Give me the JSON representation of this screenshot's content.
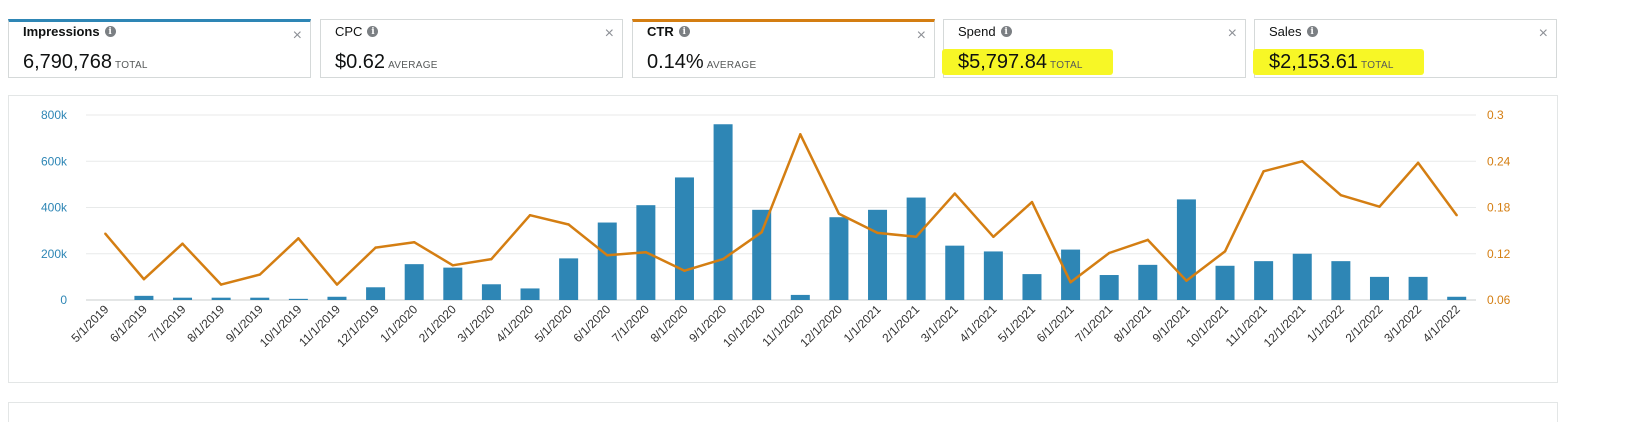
{
  "metrics": [
    {
      "label": "Impressions",
      "value": "6,790,768",
      "unit": "TOTAL",
      "selected": "blue"
    },
    {
      "label": "CPC",
      "value": "$0.62",
      "unit": "AVERAGE"
    },
    {
      "label": "CTR",
      "value": "0.14%",
      "unit": "AVERAGE",
      "selected": "orange"
    },
    {
      "label": "Spend",
      "value": "$5,797.84",
      "unit": "TOTAL",
      "highlight": true
    },
    {
      "label": "Sales",
      "value": "$2,153.61",
      "unit": "TOTAL",
      "highlight": true
    }
  ],
  "close_glyph": "×",
  "info_glyph": "i",
  "colors": {
    "bars": "#2e86b5",
    "line": "#d47e12",
    "highlight": "#f7f726"
  },
  "chart_data": {
    "type": "bar+line",
    "categories": [
      "5/1/2019",
      "6/1/2019",
      "7/1/2019",
      "8/1/2019",
      "9/1/2019",
      "10/1/2019",
      "11/1/2019",
      "12/1/2019",
      "1/1/2020",
      "2/1/2020",
      "3/1/2020",
      "4/1/2020",
      "5/1/2020",
      "6/1/2020",
      "7/1/2020",
      "8/1/2020",
      "9/1/2020",
      "10/1/2020",
      "11/1/2020",
      "12/1/2020",
      "1/1/2021",
      "2/1/2021",
      "3/1/2021",
      "4/1/2021",
      "5/1/2021",
      "6/1/2021",
      "7/1/2021",
      "8/1/2021",
      "9/1/2021",
      "10/1/2021",
      "11/1/2021",
      "12/1/2021",
      "1/1/2022",
      "2/1/2022",
      "3/1/2022",
      "4/1/2022"
    ],
    "series": [
      {
        "name": "Impressions",
        "type": "bar",
        "axis": "left",
        "values": [
          0,
          18000,
          10000,
          10000,
          10000,
          5000,
          14000,
          55000,
          155000,
          140000,
          68000,
          50000,
          180000,
          335000,
          410000,
          530000,
          760000,
          390000,
          22000,
          358000,
          390000,
          443000,
          235000,
          210000,
          112000,
          218000,
          108000,
          152000,
          435000,
          148000,
          168000,
          200000,
          168000,
          100000,
          100000,
          14000
        ]
      },
      {
        "name": "CTR",
        "type": "line",
        "axis": "right",
        "values": [
          0.146,
          0.087,
          0.133,
          0.08,
          0.093,
          0.14,
          0.08,
          0.128,
          0.135,
          0.105,
          0.113,
          0.17,
          0.158,
          0.118,
          0.122,
          0.098,
          0.113,
          0.148,
          0.275,
          0.172,
          0.147,
          0.142,
          0.198,
          0.142,
          0.187,
          0.083,
          0.121,
          0.138,
          0.085,
          0.123,
          0.227,
          0.24,
          0.196,
          0.181,
          0.238,
          0.17
        ]
      }
    ],
    "y_left": {
      "ticks": [
        "0",
        "200k",
        "400k",
        "600k",
        "800k"
      ],
      "range": [
        0,
        800000
      ]
    },
    "y_right": {
      "ticks": [
        "0.06",
        "0.12",
        "0.18",
        "0.24",
        "0.3"
      ],
      "range": [
        0.06,
        0.3
      ]
    },
    "grid": true
  }
}
